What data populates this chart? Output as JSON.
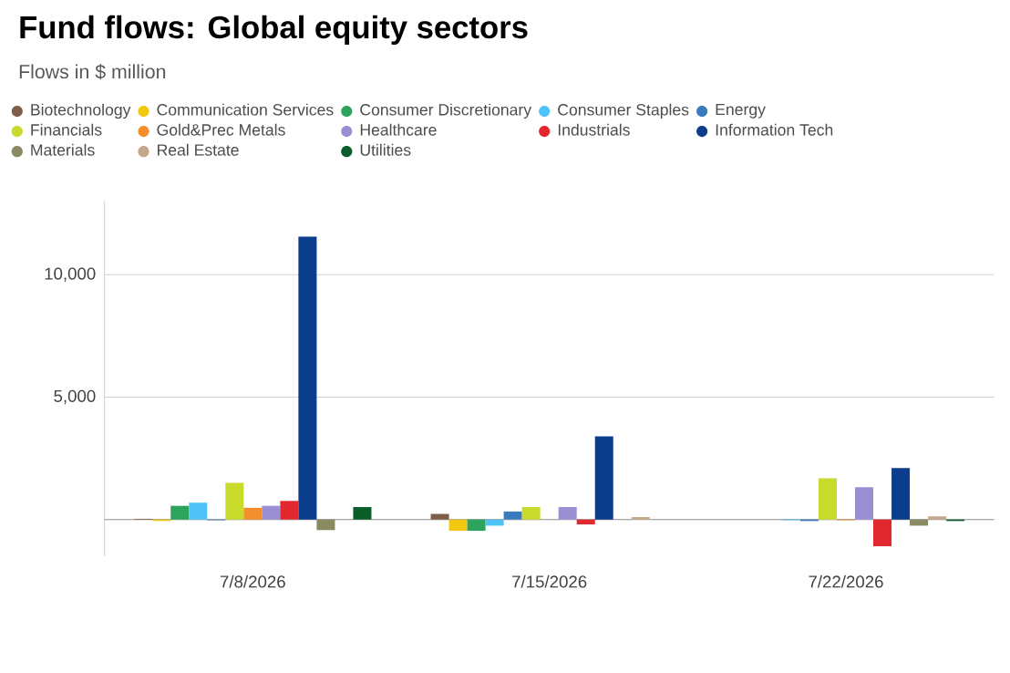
{
  "chart_data": {
    "type": "bar",
    "title": "Fund flows: Global equity sectors",
    "subtitle": "Flows in $ million",
    "categories": [
      "7/8/2026",
      "7/15/2026",
      "7/22/2026"
    ],
    "series": [
      {
        "name": "Biotechnology",
        "color": "#7f5f4a",
        "values": [
          30,
          230,
          0
        ]
      },
      {
        "name": "Communication Services",
        "color": "#f2c80f",
        "values": [
          -60,
          -460,
          0
        ]
      },
      {
        "name": "Consumer Discretionary",
        "color": "#2ea35b",
        "values": [
          560,
          -460,
          0
        ]
      },
      {
        "name": "Consumer Staples",
        "color": "#4fc3f7",
        "values": [
          690,
          -250,
          -30
        ]
      },
      {
        "name": "Energy",
        "color": "#3a7bbf",
        "values": [
          -30,
          330,
          -60
        ]
      },
      {
        "name": "Financials",
        "color": "#c8da2b",
        "values": [
          1500,
          510,
          1680
        ]
      },
      {
        "name": "Gold&Prec Metals",
        "color": "#f28e2b",
        "values": [
          480,
          0,
          -30
        ]
      },
      {
        "name": "Healthcare",
        "color": "#9b8fd4",
        "values": [
          560,
          510,
          1320
        ]
      },
      {
        "name": "Industrials",
        "color": "#e0282e",
        "values": [
          760,
          -200,
          -1090
        ]
      },
      {
        "name": "Information Tech",
        "color": "#0b3d8c",
        "values": [
          11550,
          3400,
          2100
        ]
      },
      {
        "name": "Materials",
        "color": "#8a8a60",
        "values": [
          -430,
          0,
          -250
        ]
      },
      {
        "name": "Real Estate",
        "color": "#c4a88a",
        "values": [
          0,
          100,
          130
        ]
      },
      {
        "name": "Utilities",
        "color": "#0b5e2a",
        "values": [
          510,
          0,
          -60
        ]
      }
    ],
    "ylim": [
      -1500,
      13000
    ],
    "yticks": [
      {
        "value": 0,
        "label": null
      },
      {
        "value": 5000,
        "label": "5,000"
      },
      {
        "value": 10000,
        "label": "10,000"
      }
    ],
    "grid": "y",
    "legend": "top left"
  }
}
